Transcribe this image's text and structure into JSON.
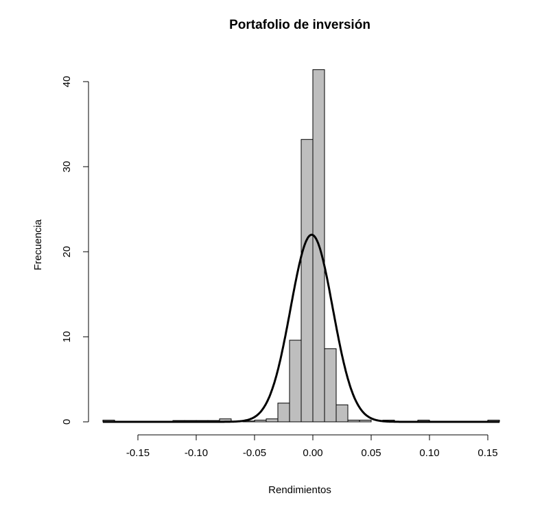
{
  "chart_data": {
    "type": "bar",
    "title": "Portafolio de inversión",
    "xlabel": "Rendimientos",
    "ylabel": "Frecuencia",
    "xlim": [
      -0.18,
      0.16
    ],
    "ylim": [
      0,
      40
    ],
    "x_ticks": [
      "-0.15",
      "-0.10",
      "-0.05",
      "0.00",
      "0.05",
      "0.10",
      "0.15"
    ],
    "x_tick_values": [
      -0.15,
      -0.1,
      -0.05,
      0.0,
      0.05,
      0.1,
      0.15
    ],
    "y_ticks": [
      "0",
      "10",
      "20",
      "30",
      "40"
    ],
    "y_tick_values": [
      0,
      10,
      20,
      30,
      40
    ],
    "bin_width": 0.01,
    "bin_starts": [
      -0.18,
      -0.17,
      -0.16,
      -0.15,
      -0.14,
      -0.13,
      -0.12,
      -0.11,
      -0.1,
      -0.09,
      -0.08,
      -0.07,
      -0.06,
      -0.05,
      -0.04,
      -0.03,
      -0.02,
      -0.01,
      0.0,
      0.01,
      0.02,
      0.03,
      0.04,
      0.05,
      0.06,
      0.07,
      0.08,
      0.09,
      0.1,
      0.11,
      0.12,
      0.13,
      0.14,
      0.15
    ],
    "values": [
      0.2,
      0,
      0,
      0,
      0,
      0,
      0.15,
      0.15,
      0.15,
      0.15,
      0.35,
      0,
      0.1,
      0.2,
      0.35,
      2.2,
      9.6,
      33.2,
      41.4,
      8.6,
      2.0,
      0.2,
      0.2,
      0,
      0.2,
      0,
      0,
      0.2,
      0,
      0,
      0,
      0,
      0,
      0.2
    ],
    "bar_fill": "#bebebe",
    "bar_stroke": "#000000",
    "curve": {
      "type": "normal_density",
      "mean": -0.001,
      "sd": 0.0181,
      "peak": 22.0,
      "color": "#000000"
    },
    "grid": false,
    "legend": "none"
  }
}
